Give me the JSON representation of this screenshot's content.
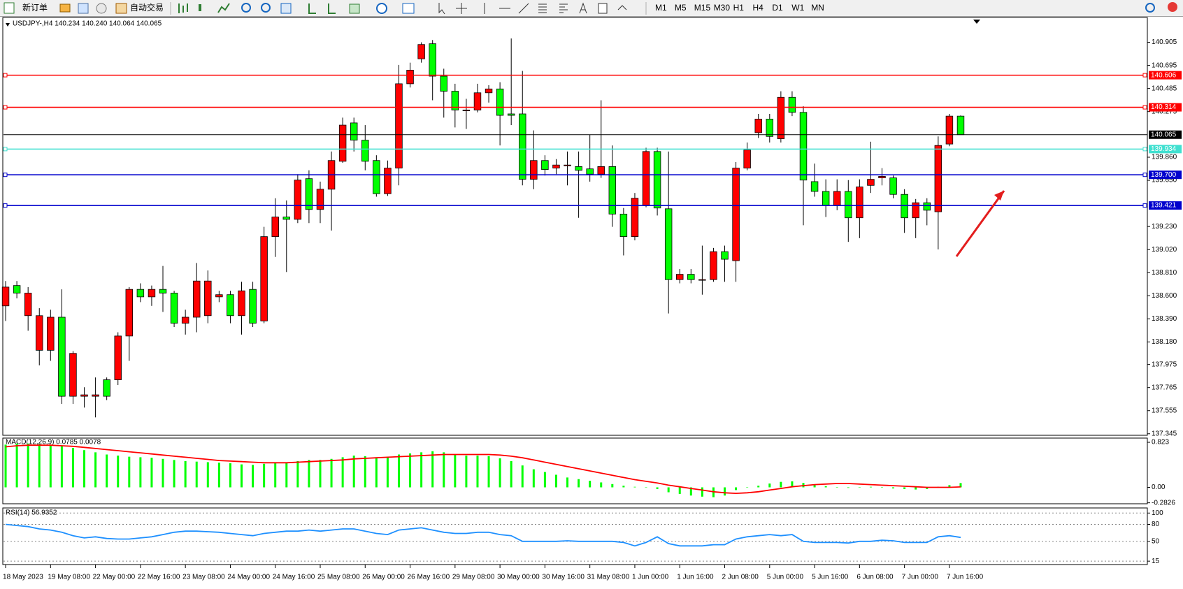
{
  "toolbar": {
    "new_order": "新订单",
    "auto_trading": "自动交易",
    "timeframes": [
      "M1",
      "M5",
      "M15",
      "M30",
      "H1",
      "H4",
      "D1",
      "W1",
      "MN"
    ]
  },
  "chart_data": [
    {
      "type": "candlestick",
      "title": "USDJPY-,H4  140.234 140.240 140.064 140.065",
      "categories": [
        "18 May 2023",
        null,
        null,
        null,
        "19 May 08:00",
        null,
        null,
        null,
        "22 May 00:00",
        null,
        null,
        null,
        "22 May 16:00",
        null,
        null,
        null,
        "23 May 08:00",
        null,
        null,
        null,
        "24 May 00:00",
        null,
        null,
        null,
        "24 May 16:00",
        null,
        null,
        null,
        "25 May 08:00",
        null,
        null,
        null,
        "26 May 00:00",
        null,
        null,
        null,
        "26 May 16:00",
        null,
        null,
        null,
        "29 May 08:00",
        null,
        null,
        null,
        "30 May 00:00",
        null,
        null,
        null,
        "30 May 16:00",
        null,
        null,
        null,
        "31 May 08:00",
        null,
        null,
        null,
        "1 Jun 00:00",
        null,
        null,
        null,
        "1 Jun 16:00",
        null,
        null,
        null,
        "2 Jun 08:00",
        null,
        null,
        null,
        "5 Jun 00:00",
        null,
        null,
        null,
        "5 Jun 16:00",
        null,
        null,
        null,
        "6 Jun 08:00",
        null,
        null,
        null,
        "7 Jun 00:00",
        null,
        null,
        null,
        "7 Jun 16:00",
        null
      ],
      "open": [
        138.508,
        138.693,
        138.419,
        138.104,
        138.104,
        138.405,
        137.686,
        137.686,
        137.686,
        137.836,
        137.836,
        138.234,
        138.658,
        138.59,
        138.658,
        138.624,
        138.35,
        138.405,
        138.419,
        138.59,
        138.61,
        138.419,
        138.658,
        138.371,
        139.138,
        139.316,
        139.295,
        139.665,
        139.385,
        139.569,
        139.823,
        140.172,
        140.015,
        139.83,
        139.528,
        139.761,
        140.528,
        140.755,
        140.892,
        140.597,
        140.46,
        140.282,
        140.289,
        140.446,
        140.481,
        140.254,
        140.254,
        139.659,
        139.83,
        139.761,
        139.782,
        139.775,
        139.754,
        139.706,
        139.775,
        139.343,
        139.138,
        139.419,
        139.912,
        139.391,
        138.747,
        138.795,
        138.741,
        138.747,
        139.001,
        138.919,
        139.761,
        140.083,
        140.207,
        140.028,
        140.405,
        140.268,
        139.638,
        139.549,
        139.419,
        139.549,
        139.309,
        139.604,
        139.672,
        139.672,
        139.522,
        139.309,
        139.446,
        139.364,
        139.98,
        140.234
      ],
      "high": [
        138.734,
        138.734,
        138.679,
        138.487,
        138.473,
        138.658,
        138.097,
        137.768,
        137.857,
        137.857,
        138.268,
        138.679,
        138.713,
        138.693,
        138.871,
        138.645,
        138.473,
        138.898,
        138.83,
        138.645,
        138.645,
        138.727,
        138.727,
        139.227,
        139.487,
        139.467,
        139.706,
        139.741,
        139.638,
        139.912,
        140.22,
        140.22,
        140.152,
        139.878,
        139.83,
        140.7,
        140.72,
        140.905,
        140.926,
        140.665,
        140.528,
        140.391,
        140.528,
        140.515,
        140.542,
        140.94,
        140.645,
        140.104,
        139.878,
        139.843,
        139.912,
        139.912,
        140.063,
        140.378,
        139.967,
        139.398,
        139.535,
        139.946,
        139.946,
        139.912,
        138.843,
        138.843,
        139.056,
        139.035,
        139.056,
        139.816,
        139.994,
        140.254,
        140.254,
        140.46,
        140.46,
        140.323,
        139.802,
        139.659,
        139.659,
        139.652,
        139.659,
        140.001,
        139.761,
        139.693,
        139.569,
        139.48,
        139.487,
        140.049,
        140.254,
        140.24
      ],
      "low": [
        138.371,
        138.576,
        138.282,
        137.967,
        138.008,
        137.617,
        137.617,
        137.583,
        137.494,
        137.651,
        137.788,
        138.008,
        138.542,
        138.508,
        138.453,
        138.316,
        138.247,
        138.268,
        138.35,
        138.542,
        138.35,
        138.247,
        138.316,
        138.35,
        138.953,
        138.816,
        139.261,
        139.261,
        139.261,
        139.193,
        139.809,
        139.912,
        139.741,
        139.501,
        139.508,
        139.604,
        140.494,
        140.72,
        140.378,
        140.22,
        140.131,
        140.117,
        140.268,
        140.357,
        139.967,
        140.152,
        139.604,
        139.569,
        139.693,
        139.706,
        139.604,
        139.309,
        139.638,
        139.672,
        139.227,
        138.967,
        139.104,
        139.405,
        139.33,
        138.439,
        138.713,
        138.713,
        138.61,
        138.727,
        138.727,
        138.727,
        139.741,
        140.035,
        139.994,
        139.994,
        140.234,
        139.241,
        139.501,
        139.316,
        139.378,
        139.09,
        139.124,
        139.535,
        139.604,
        139.487,
        139.172,
        139.124,
        139.241,
        139.021,
        139.96,
        140.064
      ],
      "close": [
        138.679,
        138.624,
        138.624,
        138.419,
        138.405,
        137.686,
        138.076,
        137.699,
        137.699,
        137.686,
        138.234,
        138.658,
        138.59,
        138.658,
        138.624,
        138.35,
        138.405,
        138.734,
        138.734,
        138.61,
        138.419,
        138.645,
        138.35,
        139.138,
        139.316,
        139.295,
        139.652,
        139.385,
        139.569,
        139.83,
        140.152,
        140.015,
        139.823,
        139.528,
        139.761,
        140.528,
        140.652,
        140.885,
        140.597,
        140.46,
        140.289,
        140.289,
        140.446,
        140.481,
        140.241,
        140.241,
        139.659,
        139.83,
        139.748,
        139.789,
        139.789,
        139.741,
        139.706,
        139.775,
        139.343,
        139.138,
        139.487,
        139.912,
        139.398,
        138.747,
        138.795,
        138.747,
        138.747,
        139.001,
        138.932,
        139.761,
        139.926,
        140.207,
        140.049,
        140.405,
        140.268,
        139.652,
        139.549,
        139.419,
        139.549,
        139.309,
        139.59,
        139.659,
        139.686,
        139.522,
        139.309,
        139.446,
        139.378,
        139.967,
        140.234,
        140.065
      ],
      "up_color": "#ff0000",
      "down_color": "#00ff00",
      "ylim": [
        137.331,
        141.131
      ],
      "yticks": [
        140.905,
        140.695,
        140.485,
        140.275,
        {
          "value": 139.86,
          "label": "139.860"
        },
        {
          "value": 139.65,
          "label": "139.650"
        },
        {
          "value": 139.23,
          "label": "139.230"
        },
        {
          "value": 139.02,
          "label": "139.020"
        },
        {
          "value": 138.81,
          "label": "138.810"
        },
        {
          "value": 138.6,
          "label": "138.600"
        },
        {
          "value": 138.39,
          "label": "138.390"
        },
        {
          "value": 138.18,
          "label": "138.180"
        },
        137.975,
        137.765,
        137.555,
        137.345
      ],
      "hlines": [
        {
          "value": 140.606,
          "color": "#ff0000"
        },
        {
          "value": 140.314,
          "color": "#ff0000"
        },
        {
          "value": 140.065,
          "color": "#000000"
        },
        {
          "value": 139.934,
          "color": "#40e0d0"
        },
        {
          "value": 139.7,
          "label": "139.700",
          "color": "#0000cd"
        },
        {
          "value": 139.421,
          "color": "#0000cd"
        }
      ]
    },
    {
      "type": "macd",
      "title": "MACD(12,26,9) 0.0785 0.0078",
      "series": [
        {
          "type": "bar",
          "color": "#00ff00",
          "values": [
            0.78,
            0.8,
            0.8,
            0.79,
            0.78,
            0.76,
            0.72,
            0.68,
            0.64,
            0.6,
            0.58,
            0.56,
            0.55,
            0.54,
            0.52,
            0.5,
            0.48,
            0.47,
            0.46,
            0.45,
            0.44,
            0.42,
            0.41,
            0.43,
            0.45,
            0.46,
            0.48,
            0.5,
            0.5,
            0.52,
            0.55,
            0.58,
            0.57,
            0.55,
            0.56,
            0.6,
            0.62,
            0.64,
            0.66,
            0.64,
            0.6,
            0.58,
            0.58,
            0.57,
            0.53,
            0.48,
            0.4,
            0.33,
            0.28,
            0.23,
            0.18,
            0.15,
            0.12,
            0.09,
            0.06,
            0.03,
            0.01,
            0.0,
            -0.03,
            -0.09,
            -0.12,
            -0.15,
            -0.17,
            -0.18,
            -0.15,
            -0.05,
            0.0,
            0.03,
            0.07,
            0.1,
            0.11,
            0.08,
            0.05,
            0.02,
            0.0,
            -0.01,
            0.0,
            0.01,
            0.0,
            -0.02,
            -0.03,
            -0.04,
            -0.03,
            0.01,
            0.04,
            0.0785
          ]
        },
        {
          "type": "line",
          "color": "#ff0000",
          "values": [
            0.74,
            0.76,
            0.77,
            0.77,
            0.77,
            0.76,
            0.75,
            0.73,
            0.71,
            0.69,
            0.67,
            0.65,
            0.63,
            0.61,
            0.59,
            0.57,
            0.55,
            0.53,
            0.51,
            0.49,
            0.48,
            0.47,
            0.46,
            0.45,
            0.45,
            0.45,
            0.46,
            0.47,
            0.48,
            0.49,
            0.5,
            0.52,
            0.53,
            0.54,
            0.55,
            0.56,
            0.57,
            0.58,
            0.59,
            0.6,
            0.6,
            0.6,
            0.6,
            0.6,
            0.59,
            0.57,
            0.54,
            0.5,
            0.46,
            0.42,
            0.38,
            0.34,
            0.3,
            0.26,
            0.22,
            0.18,
            0.14,
            0.11,
            0.08,
            0.04,
            0.01,
            -0.02,
            -0.05,
            -0.08,
            -0.1,
            -0.11,
            -0.1,
            -0.08,
            -0.05,
            -0.02,
            0.01,
            0.03,
            0.05,
            0.06,
            0.07,
            0.07,
            0.06,
            0.05,
            0.04,
            0.03,
            0.02,
            0.01,
            0.0,
            0.0,
            0.0,
            0.0078
          ]
        }
      ],
      "ylim": [
        -0.3,
        0.9
      ],
      "yticks": [
        0.823,
        {
          "value": 0,
          "label": "0.00"
        },
        -0.2826
      ]
    },
    {
      "type": "rsi",
      "title": "RSI(14) 56.9352",
      "series": [
        {
          "type": "line",
          "color": "#1e90ff",
          "values": [
            80,
            78,
            76,
            72,
            70,
            66,
            60,
            56,
            58,
            55,
            54,
            54,
            56,
            58,
            62,
            66,
            68,
            68,
            67,
            66,
            64,
            62,
            60,
            64,
            66,
            68,
            68,
            70,
            68,
            70,
            72,
            72,
            68,
            64,
            62,
            70,
            72,
            74,
            70,
            66,
            64,
            64,
            66,
            66,
            62,
            60,
            50,
            50,
            50,
            50,
            51,
            50,
            50,
            50,
            50,
            48,
            42,
            48,
            58,
            46,
            42,
            42,
            42,
            44,
            44,
            54,
            58,
            60,
            62,
            60,
            62,
            50,
            48,
            48,
            48,
            47,
            50,
            50,
            52,
            51,
            48,
            48,
            48,
            58,
            60,
            56.9352
          ]
        }
      ],
      "ylim": [
        9,
        109
      ],
      "yticks": [
        100,
        80,
        50,
        15
      ]
    }
  ]
}
